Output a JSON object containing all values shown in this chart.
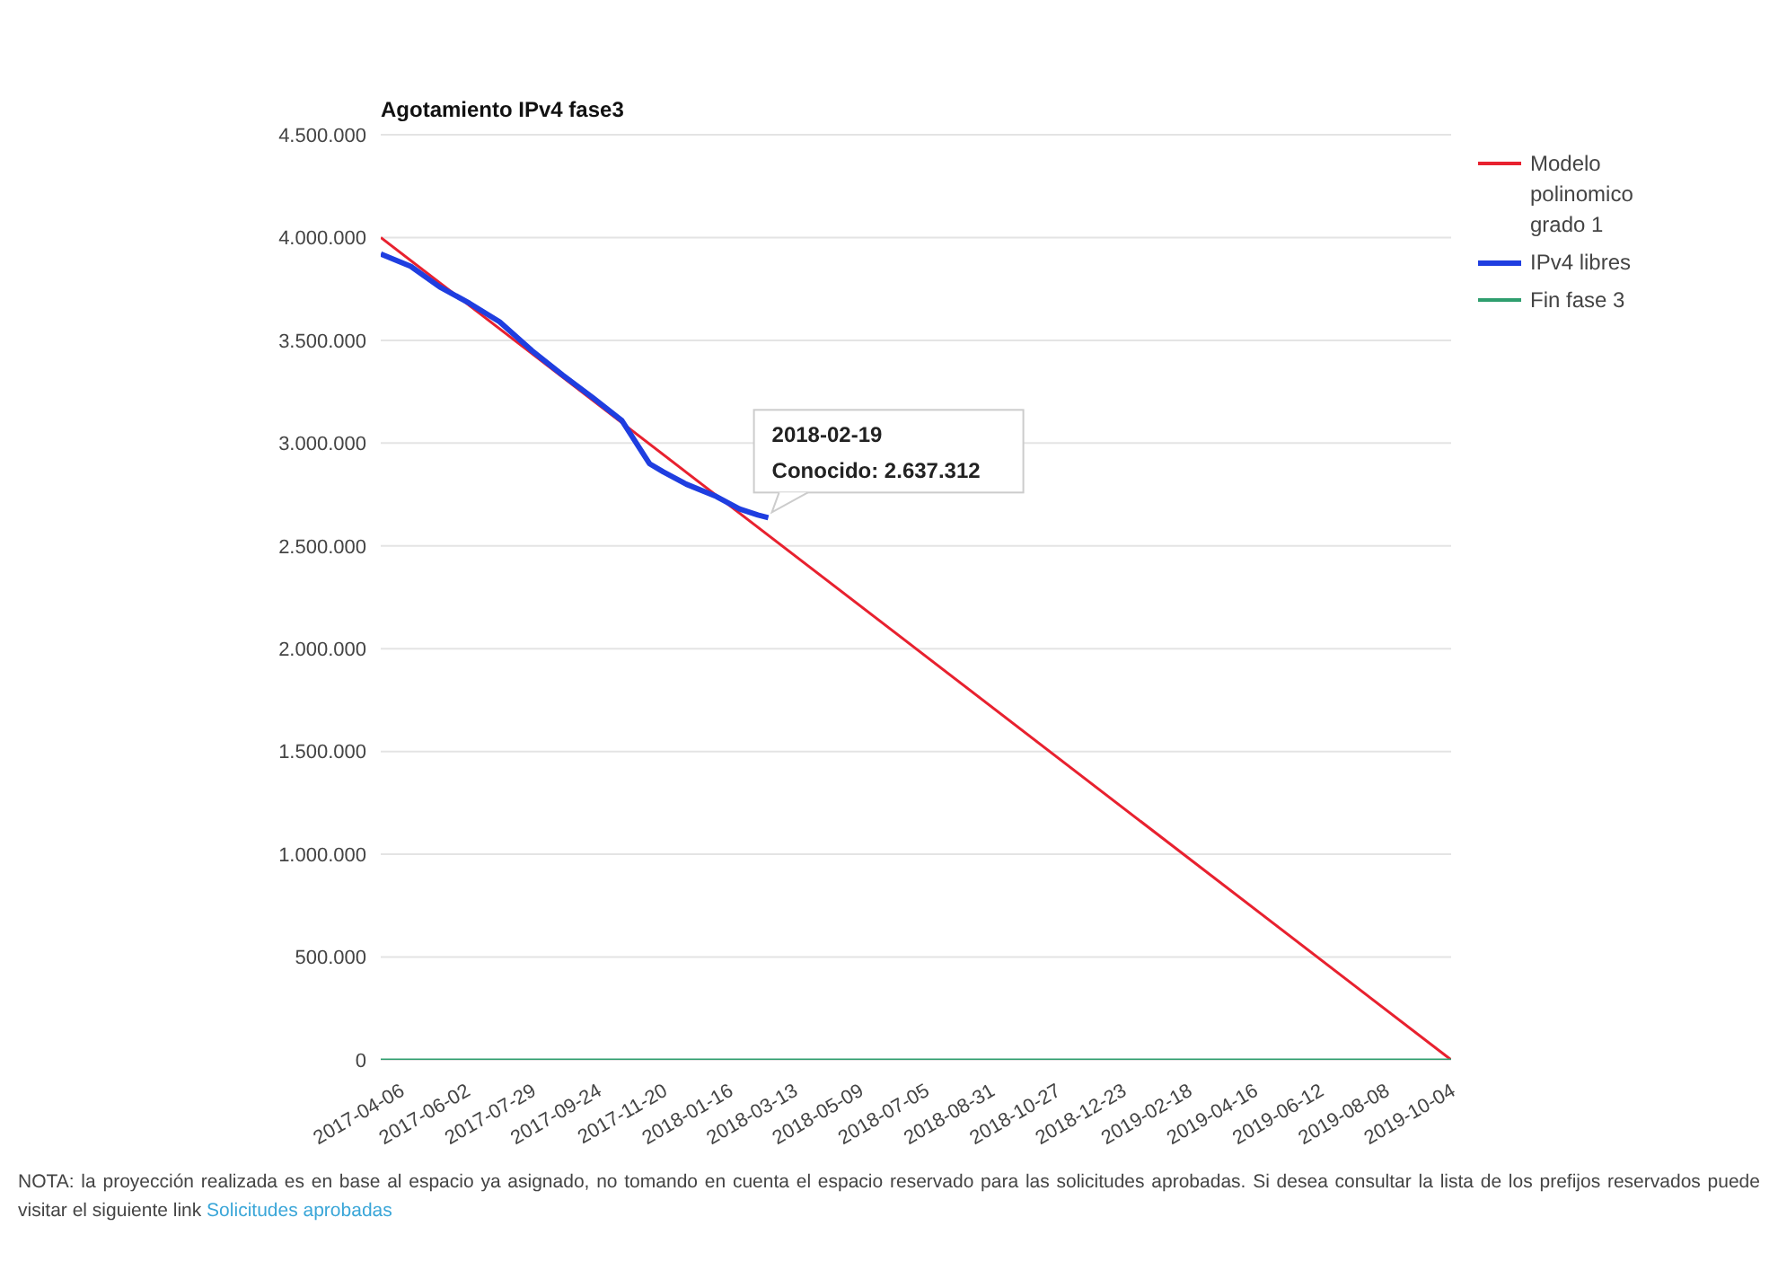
{
  "chart_data": {
    "type": "line",
    "title": "Agotamiento IPv4 fase3",
    "xlim": [
      "2017-03-20",
      "2019-10-04"
    ],
    "xticks": [
      "2017-04-06",
      "2017-06-02",
      "2017-07-29",
      "2017-09-24",
      "2017-11-20",
      "2018-01-16",
      "2018-03-13",
      "2018-05-09",
      "2018-07-05",
      "2018-08-31",
      "2018-10-27",
      "2018-12-23",
      "2019-02-18",
      "2019-04-16",
      "2019-06-12",
      "2019-08-08",
      "2019-10-04"
    ],
    "ylim": [
      0,
      4500000
    ],
    "yticks": [
      {
        "value": 0,
        "label": "0"
      },
      {
        "value": 500000,
        "label": "500.000"
      },
      {
        "value": 1000000,
        "label": "1.000.000"
      },
      {
        "value": 1500000,
        "label": "1.500.000"
      },
      {
        "value": 2000000,
        "label": "2.000.000"
      },
      {
        "value": 2500000,
        "label": "2.500.000"
      },
      {
        "value": 3000000,
        "label": "3.000.000"
      },
      {
        "value": 3500000,
        "label": "3.500.000"
      },
      {
        "value": 4000000,
        "label": "4.000.000"
      },
      {
        "value": 4500000,
        "label": "4.500.000"
      }
    ],
    "grid": "y",
    "legend": "top right",
    "marker": "none",
    "line_style": "solid",
    "series": [
      {
        "name": "Modelo polinomico grado 1",
        "color": "#e8212f",
        "x": [
          "2017-03-20",
          "2019-10-04"
        ],
        "values": [
          4000000,
          0
        ]
      },
      {
        "name": "IPv4 libres",
        "color": "#1f3ee0",
        "x": [
          "2017-03-20",
          "2017-04-15",
          "2017-05-10",
          "2017-06-05",
          "2017-07-01",
          "2017-07-29",
          "2017-08-25",
          "2017-09-20",
          "2017-10-15",
          "2017-11-08",
          "2017-11-20",
          "2017-12-10",
          "2018-01-05",
          "2018-01-25",
          "2018-02-10",
          "2018-02-19"
        ],
        "values": [
          3920000,
          3860000,
          3760000,
          3680000,
          3590000,
          3450000,
          3330000,
          3220000,
          3110000,
          2900000,
          2860000,
          2800000,
          2740000,
          2680000,
          2650000,
          2637312
        ]
      },
      {
        "name": "Fin fase 3",
        "color": "#2e9e6e",
        "x": [
          "2017-03-20",
          "2019-10-04"
        ],
        "values": [
          0,
          0
        ]
      }
    ],
    "annotations": [
      {
        "text": "2018-02-19\nConocido: 2.637.312",
        "x": "2018-02-19",
        "y": 2637312
      },
      "NOTA: la proyección realizada es en base al espacio ya asignado, no tomando en cuenta el espacio reservado para las solicitudes aprobadas. Si desea consultar la lista de los prefijos reservados puede visitar el siguiente link",
      "Solicitudes aprobadas"
    ]
  }
}
